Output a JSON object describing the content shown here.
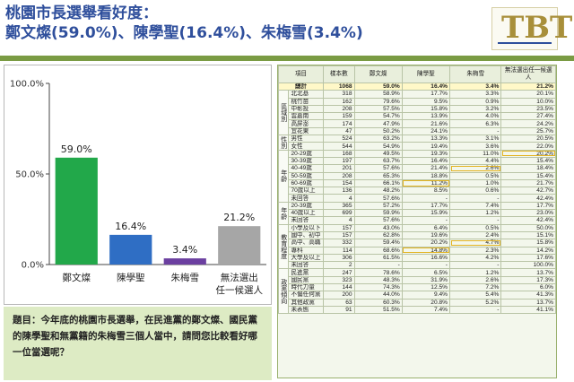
{
  "title": {
    "line1": "桃園市長選舉看好度：",
    "line2": "鄭文燦(59.0%)、陳學聖(16.4%)、朱梅雪(3.4%)"
  },
  "logo": {
    "text": "TBT"
  },
  "question": "題目：今年底的桃園市長選舉，在民進黨的鄭文燦、國民黨的陳學聖和無黨籍的朱梅雪三個人當中，請問您比較看好哪一位當選呢？",
  "colors": {
    "green": "#22a84a",
    "blue": "#2f6ec4",
    "purple": "#6b3fa0",
    "gray": "#a6a6a6"
  },
  "chart_data": {
    "type": "bar",
    "categories": [
      "鄭文燦",
      "陳學聖",
      "朱梅雪",
      "無法選出任一候選人"
    ],
    "category_lines": [
      [
        "鄭文燦"
      ],
      [
        "陳學聖"
      ],
      [
        "朱梅雪"
      ],
      [
        "無法選出",
        "任一候選人"
      ]
    ],
    "values": [
      59.0,
      16.4,
      3.4,
      21.2
    ],
    "value_labels": [
      "59.0%",
      "16.4%",
      "3.4%",
      "21.2%"
    ],
    "bar_colors": [
      "#22a84a",
      "#2f6ec4",
      "#6b3fa0",
      "#a6a6a6"
    ],
    "yticks": [
      0,
      50,
      100
    ],
    "ytick_labels": [
      "0.0%",
      "50.0%",
      "100.0%"
    ],
    "ylim": [
      0,
      100
    ],
    "grid": false
  },
  "table": {
    "headers": [
      "項目",
      "",
      "樣本數",
      "鄭文燦",
      "陳學聖",
      "朱梅雪",
      "無法選出任一候選人"
    ],
    "groups": [
      {
        "label": "",
        "rows": [
          [
            "總計",
            "1068",
            "59.0%",
            "16.4%",
            "3.4%",
            "21.2%"
          ]
        ],
        "total": true
      },
      {
        "label": "區域別",
        "rows": [
          [
            "北北基",
            "318",
            "58.9%",
            "17.7%",
            "3.3%",
            "20.1%"
          ],
          [
            "桃竹苗",
            "162",
            "79.6%",
            "9.5%",
            "0.9%",
            "10.0%"
          ],
          [
            "中彰投",
            "208",
            "57.5%",
            "15.8%",
            "3.2%",
            "23.5%"
          ],
          [
            "雲嘉南",
            "159",
            "54.7%",
            "13.9%",
            "4.0%",
            "27.4%"
          ],
          [
            "高屏澎",
            "174",
            "47.9%",
            "21.6%",
            "6.3%",
            "24.2%"
          ],
          [
            "宜花東",
            "47",
            "50.2%",
            "24.1%",
            "-",
            "25.7%"
          ]
        ]
      },
      {
        "label": "性別",
        "rows": [
          [
            "男性",
            "524",
            "63.2%",
            "13.3%",
            "3.1%",
            "20.5%"
          ],
          [
            "女性",
            "544",
            "54.9%",
            "19.4%",
            "3.6%",
            "22.0%"
          ]
        ]
      },
      {
        "label": "年齡",
        "rows": [
          [
            "20-29歲",
            "168",
            "49.5%",
            "19.3%",
            "11.0%",
            "20.2%"
          ],
          [
            "30-39歲",
            "197",
            "63.7%",
            "16.4%",
            "4.4%",
            "15.4%"
          ],
          [
            "40-49歲",
            "201",
            "57.6%",
            "21.4%",
            "2.6%",
            "18.4%"
          ],
          [
            "50-59歲",
            "208",
            "65.3%",
            "18.8%",
            "0.5%",
            "15.4%"
          ],
          [
            "60-69歲",
            "154",
            "66.1%",
            "11.2%",
            "1.0%",
            "21.7%"
          ],
          [
            "70歲以上",
            "136",
            "48.2%",
            "8.5%",
            "0.6%",
            "42.7%"
          ],
          [
            "未回答",
            "4",
            "57.6%",
            "-",
            "-",
            "42.4%"
          ]
        ]
      },
      {
        "label": "年齡",
        "rows": [
          [
            "20-39歲",
            "365",
            "57.2%",
            "17.7%",
            "7.4%",
            "17.7%"
          ],
          [
            "40歲以上",
            "699",
            "59.9%",
            "15.9%",
            "1.2%",
            "23.0%"
          ],
          [
            "未回答",
            "4",
            "57.6%",
            "-",
            "-",
            "42.4%"
          ]
        ]
      },
      {
        "label": "教育程度",
        "rows": [
          [
            "小學及以下",
            "157",
            "43.0%",
            "6.4%",
            "0.5%",
            "50.0%"
          ],
          [
            "國中、初中",
            "157",
            "62.8%",
            "19.6%",
            "2.4%",
            "15.1%"
          ],
          [
            "高中、高職",
            "332",
            "59.4%",
            "20.2%",
            "4.7%",
            "15.8%"
          ],
          [
            "專科",
            "114",
            "68.6%",
            "14.8%",
            "2.3%",
            "14.2%"
          ],
          [
            "大學及以上",
            "306",
            "61.5%",
            "16.6%",
            "4.2%",
            "17.6%"
          ],
          [
            "未回答",
            "2",
            "-",
            "-",
            "-",
            "100.0%"
          ]
        ]
      },
      {
        "label": "政黨傾向",
        "rows": [
          [
            "民進黨",
            "247",
            "78.6%",
            "6.5%",
            "1.2%",
            "13.7%"
          ],
          [
            "國民黨",
            "323",
            "48.3%",
            "31.9%",
            "2.6%",
            "17.3%"
          ],
          [
            "時代力量",
            "144",
            "74.3%",
            "12.5%",
            "7.2%",
            "6.0%"
          ],
          [
            "不偏任何黨",
            "200",
            "44.0%",
            "9.4%",
            "5.4%",
            "41.3%"
          ],
          [
            "其他政黨",
            "63",
            "60.3%",
            "20.8%",
            "5.2%",
            "13.7%"
          ],
          [
            "未表態",
            "91",
            "51.5%",
            "7.4%",
            "-",
            "41.1%"
          ]
        ]
      }
    ],
    "highlights": [
      [
        3,
        0,
        4
      ],
      [
        3,
        2,
        3
      ],
      [
        3,
        4,
        2
      ],
      [
        5,
        2,
        3
      ],
      [
        5,
        3,
        2
      ]
    ]
  }
}
